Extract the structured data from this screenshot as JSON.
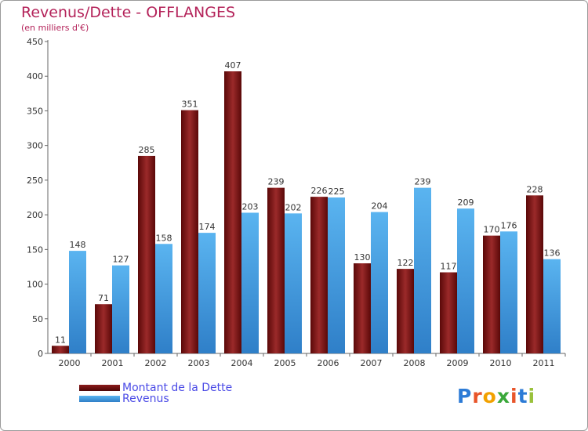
{
  "title": "Revenus/Dette - OFFLANGES",
  "subtitle": "(en milliers d'€)",
  "logo": {
    "text": "Proxiti",
    "letters": [
      "P",
      "r",
      "o",
      "x",
      "i",
      "t",
      "i"
    ],
    "colors": [
      "#2c7bd6",
      "#e8552a",
      "#f2a100",
      "#3aa83a",
      "#e8552a",
      "#2c7bd6",
      "#9ac13b"
    ]
  },
  "chart_data": {
    "type": "bar",
    "categories": [
      "2000",
      "2001",
      "2002",
      "2003",
      "2004",
      "2005",
      "2006",
      "2007",
      "2008",
      "2009",
      "2010",
      "2011"
    ],
    "series": [
      {
        "name": "Montant de la Dette",
        "color": "#7a1111",
        "values": [
          11,
          71,
          285,
          351,
          407,
          239,
          226,
          130,
          122,
          117,
          170,
          228
        ]
      },
      {
        "name": "Revenus",
        "color": "#4aa3e8",
        "values": [
          148,
          127,
          158,
          174,
          203,
          202,
          225,
          204,
          239,
          209,
          176,
          136
        ]
      }
    ],
    "ylim": [
      0,
      450
    ],
    "yticks": [
      0,
      50,
      100,
      150,
      200,
      250,
      300,
      350,
      400,
      450
    ],
    "grid": false,
    "legend_position": "bottom-left"
  }
}
